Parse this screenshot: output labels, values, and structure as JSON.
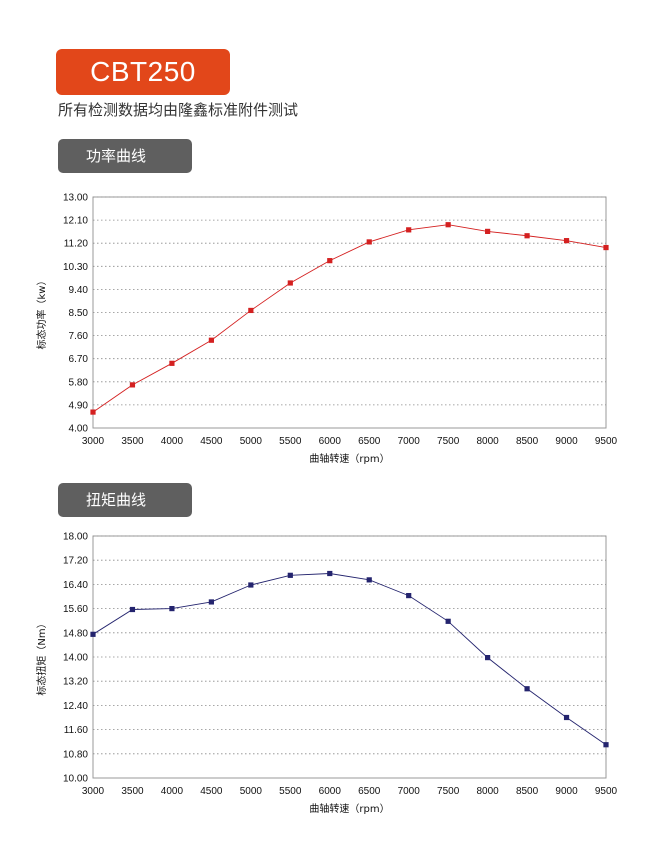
{
  "header": {
    "model": "CBT250",
    "subtitle": "所有检测数据均由隆鑫标准附件测试"
  },
  "sections": {
    "power_label": "功率曲线",
    "torque_label": "扭矩曲线"
  },
  "chart_data": [
    {
      "type": "line",
      "xlabel": "曲轴转速（rpm）",
      "ylabel": "标态功率（kw）",
      "x": [
        3000,
        3500,
        4000,
        4500,
        5000,
        5500,
        6000,
        6500,
        7000,
        7500,
        8000,
        8500,
        9000,
        9500
      ],
      "values": [
        4.62,
        5.68,
        6.52,
        7.42,
        8.58,
        9.65,
        10.52,
        11.25,
        11.72,
        11.92,
        11.66,
        11.49,
        11.3,
        11.03
      ],
      "xlim": [
        3000,
        9500
      ],
      "ylim": [
        4.0,
        13.0
      ],
      "yticks": [
        "4.00",
        "4.90",
        "5.80",
        "6.70",
        "7.60",
        "8.50",
        "9.40",
        "10.30",
        "11.20",
        "12.10",
        "13.00"
      ],
      "xticks": [
        "3000",
        "3500",
        "4000",
        "4500",
        "5000",
        "5500",
        "6000",
        "6500",
        "7000",
        "7500",
        "8000",
        "8500",
        "9000",
        "9500"
      ],
      "color": "#d42020",
      "grid": true
    },
    {
      "type": "line",
      "xlabel": "曲轴转速（rpm）",
      "ylabel": "标态扭矩（Nm）",
      "x": [
        3000,
        3500,
        4000,
        4500,
        5000,
        5500,
        6000,
        6500,
        7000,
        7500,
        8000,
        8500,
        9000,
        9500
      ],
      "values": [
        14.75,
        15.57,
        15.6,
        15.82,
        16.38,
        16.7,
        16.76,
        16.55,
        16.03,
        15.18,
        13.98,
        12.95,
        12.0,
        11.1
      ],
      "xlim": [
        3000,
        9500
      ],
      "ylim": [
        10.0,
        18.0
      ],
      "yticks": [
        "10.00",
        "10.80",
        "11.60",
        "12.40",
        "13.20",
        "14.00",
        "14.80",
        "15.60",
        "16.40",
        "17.20",
        "18.00"
      ],
      "xticks": [
        "3000",
        "3500",
        "4000",
        "4500",
        "5000",
        "5500",
        "6000",
        "6500",
        "7000",
        "7500",
        "8000",
        "8500",
        "9000",
        "9500"
      ],
      "color": "#24246e",
      "grid": true
    }
  ]
}
